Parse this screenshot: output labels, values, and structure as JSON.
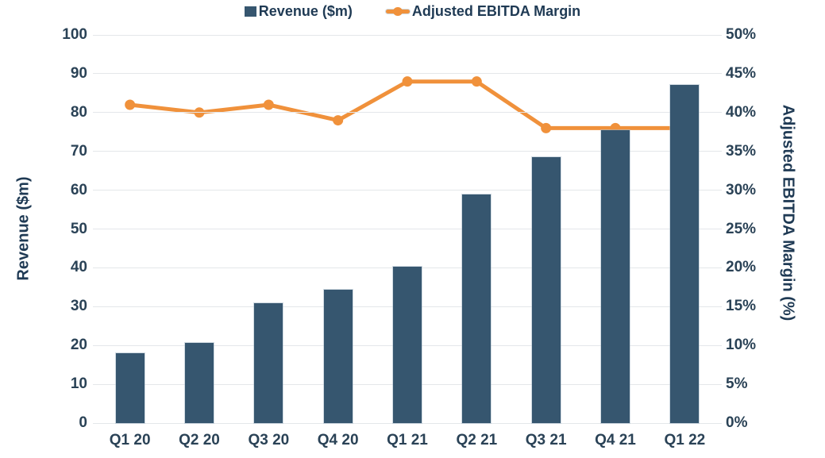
{
  "chart_data": {
    "type": "bar",
    "subtype": "combo-bar-line-dual-axis",
    "categories": [
      "Q1 20",
      "Q2 20",
      "Q3 20",
      "Q4 20",
      "Q1 21",
      "Q2 21",
      "Q3 21",
      "Q4 21",
      "Q1 22"
    ],
    "series": [
      {
        "name": "Revenue ($m)",
        "type": "bar",
        "axis": "left",
        "color": "#36566F",
        "values": [
          17.9,
          20.6,
          30.8,
          34.4,
          40.2,
          58.8,
          68.5,
          75.5,
          87.2
        ]
      },
      {
        "name": "Adjusted EBITDA Margin",
        "type": "line",
        "axis": "right",
        "color": "#F0913B",
        "values": [
          41,
          40,
          41,
          39,
          44,
          44,
          38,
          38,
          38
        ]
      }
    ],
    "left_axis": {
      "label": "Revenue ($m)",
      "min": 0,
      "max": 100,
      "step": 10,
      "tick_labels": [
        "0",
        "10",
        "20",
        "30",
        "40",
        "50",
        "60",
        "70",
        "80",
        "90",
        "100"
      ]
    },
    "right_axis": {
      "label": "Adjusted EBITDA Margin (%)",
      "min": 0,
      "max": 50,
      "step": 5,
      "tick_labels": [
        "0%",
        "5%",
        "10%",
        "15%",
        "20%",
        "25%",
        "30%",
        "35%",
        "40%",
        "45%",
        "50%"
      ]
    },
    "grid": "horizontal",
    "legend_position": "top-center",
    "colors": {
      "text": "#1F3A54",
      "tick_text": "#2A4256",
      "gridline": "#E4E7EA",
      "background": "#FFFFFF",
      "bar": "#36566F",
      "line": "#F0913B"
    }
  },
  "legend": {
    "items": [
      {
        "label": "Revenue ($m)",
        "marker": "square",
        "color": "#36566F"
      },
      {
        "label": "Adjusted EBITDA Margin",
        "marker": "line-dot",
        "color": "#F0913B"
      }
    ]
  }
}
